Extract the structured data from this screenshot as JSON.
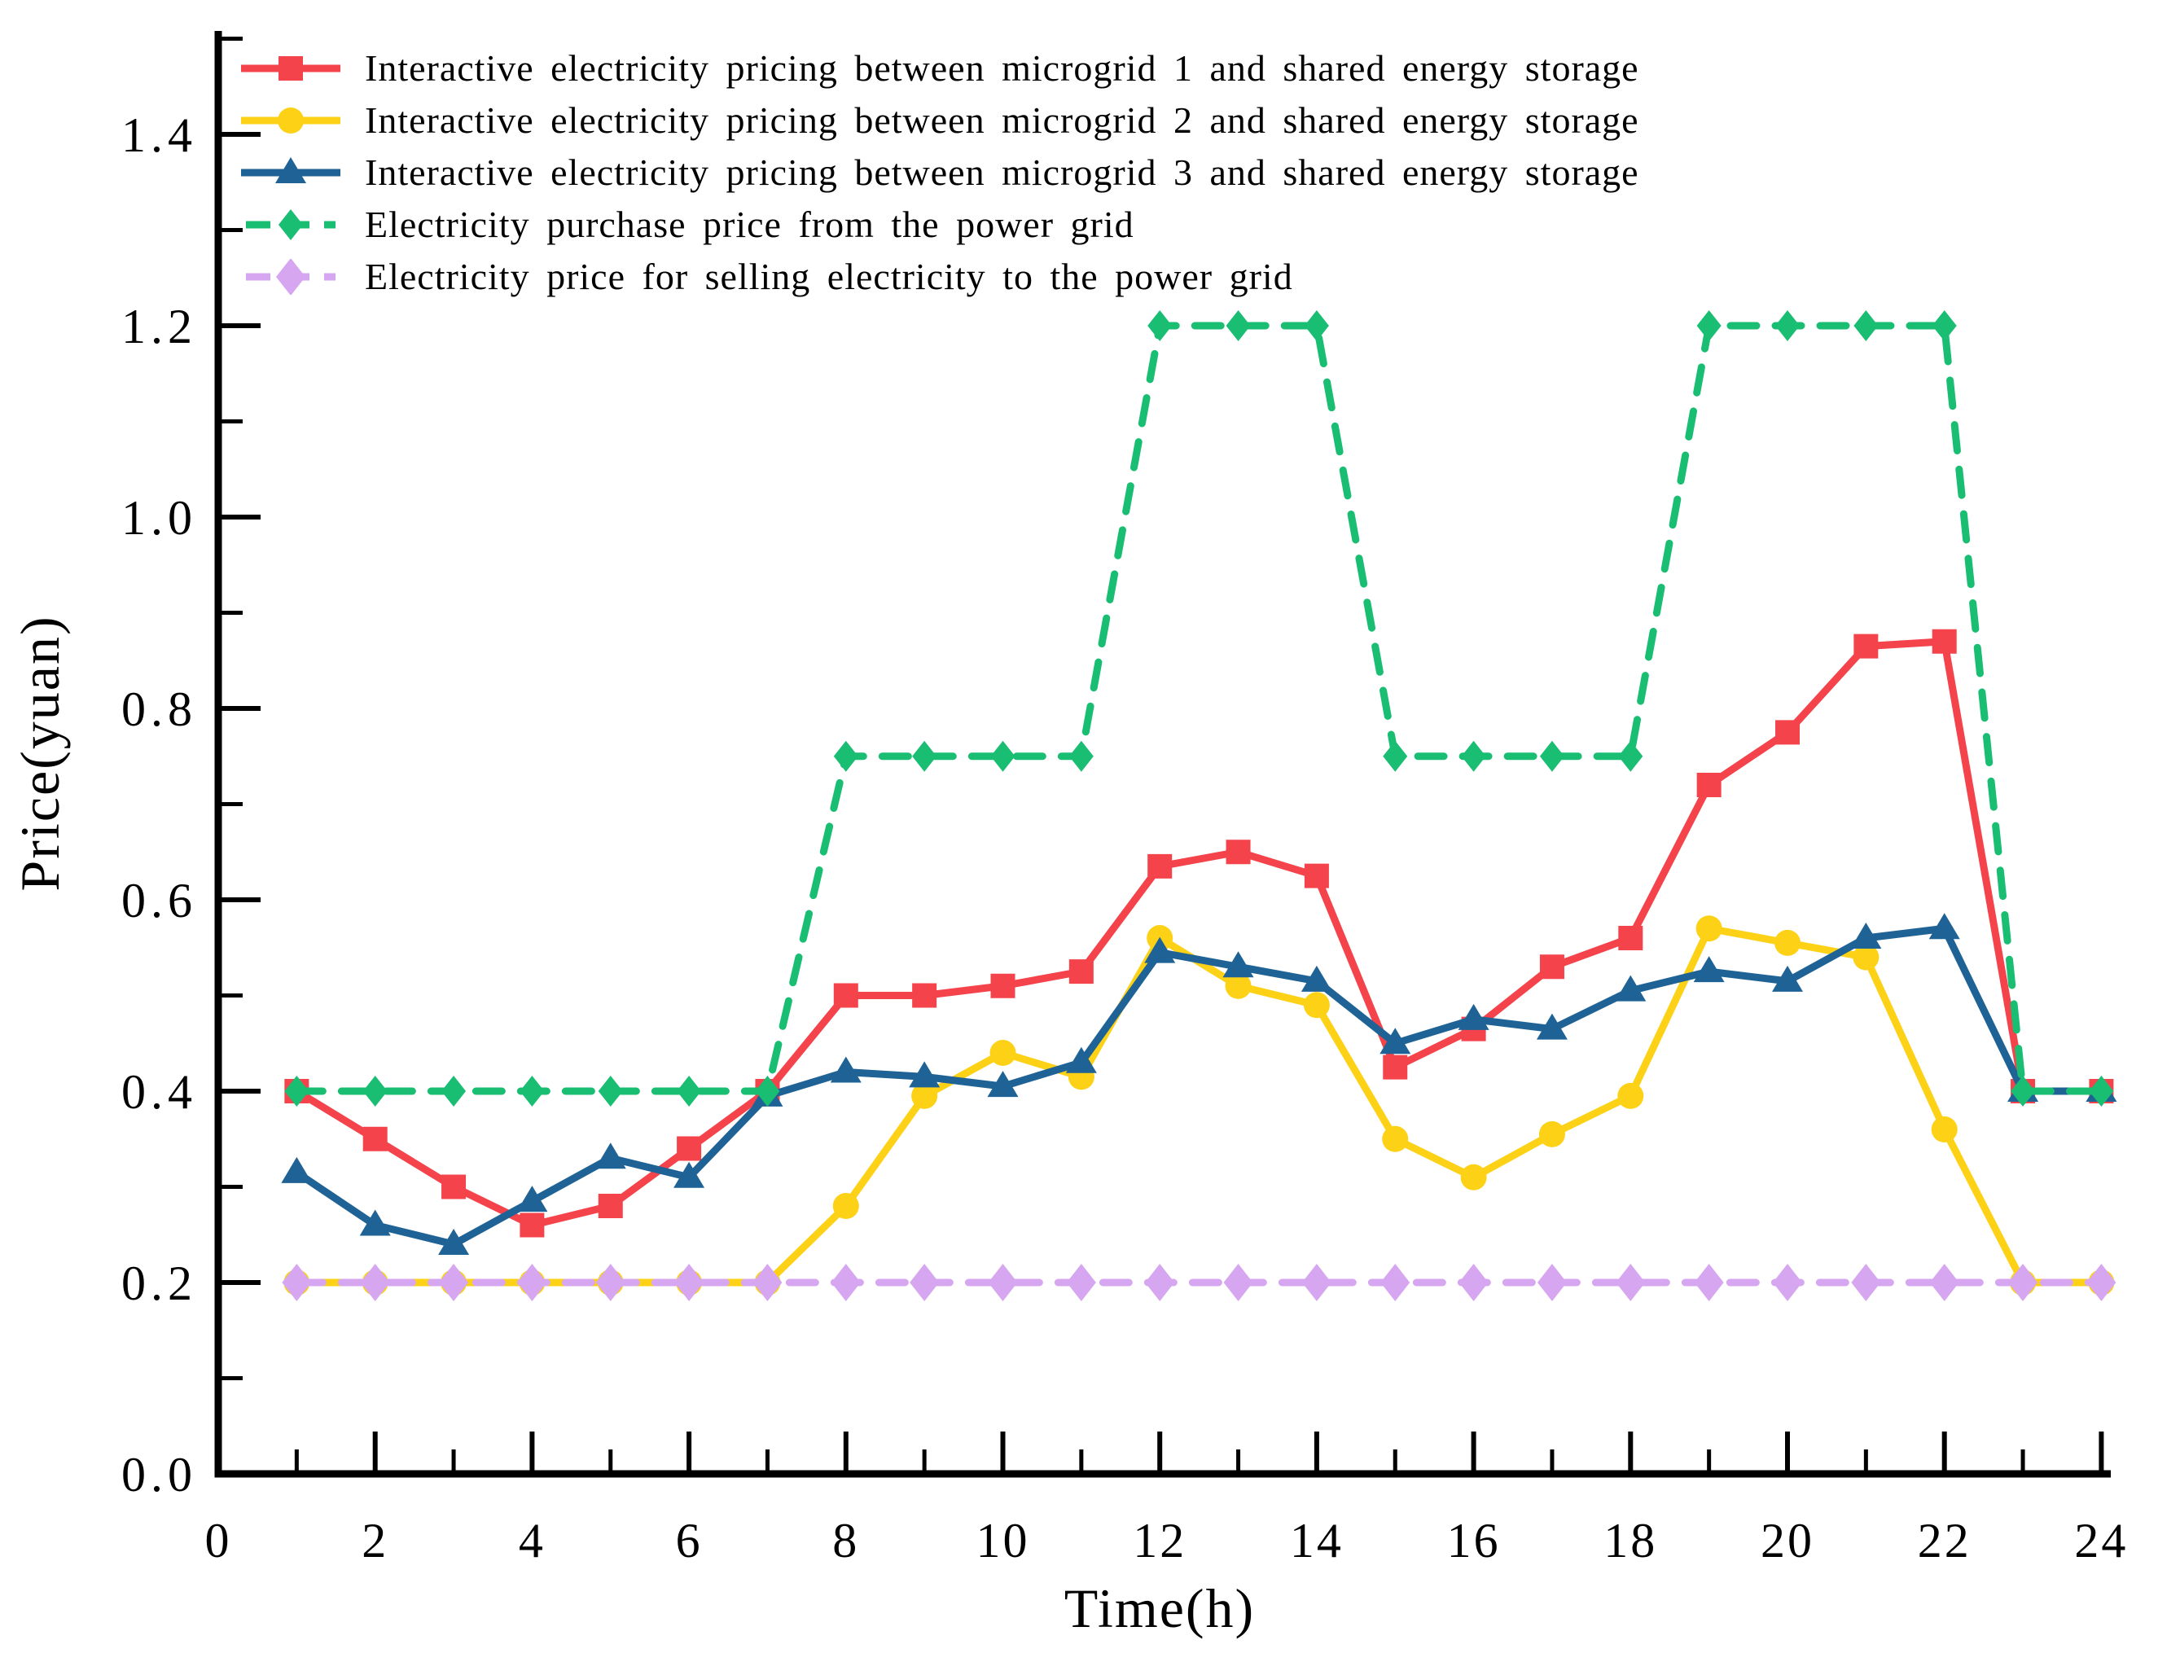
{
  "chart_data": {
    "type": "line",
    "title": "",
    "xlabel": "Time(h)",
    "ylabel": "Price(yuan)",
    "x": [
      1,
      2,
      3,
      4,
      5,
      6,
      7,
      8,
      9,
      10,
      11,
      12,
      13,
      14,
      15,
      16,
      17,
      18,
      19,
      20,
      21,
      22,
      23,
      24
    ],
    "x_tick_labels": [
      "0",
      "2",
      "4",
      "6",
      "8",
      "10",
      "12",
      "14",
      "16",
      "18",
      "20",
      "22",
      "24"
    ],
    "y_tick_labels": [
      "0.0",
      "0.2",
      "0.4",
      "0.6",
      "0.8",
      "1.0",
      "1.2",
      "1.4"
    ],
    "xlim": [
      0,
      24
    ],
    "ylim": [
      0,
      1.5
    ],
    "grid": "off",
    "legend_position": "top-left",
    "axis_color": "#000000",
    "series": [
      {
        "name": "Interactive electricity pricing between microgrid 1 and shared energy storage",
        "color": "#F4434B",
        "marker": "square",
        "line": "solid",
        "values": [
          0.4,
          0.35,
          0.3,
          0.26,
          0.28,
          0.34,
          0.4,
          0.5,
          0.5,
          0.51,
          0.525,
          0.635,
          0.65,
          0.625,
          0.425,
          0.465,
          0.53,
          0.56,
          0.72,
          0.775,
          0.865,
          0.87,
          0.4,
          0.4
        ]
      },
      {
        "name": "Interactive electricity pricing between microgrid 2 and shared energy storage",
        "color": "#FCD116",
        "marker": "circle",
        "line": "solid",
        "values": [
          0.2,
          0.2,
          0.2,
          0.2,
          0.2,
          0.2,
          0.2,
          0.28,
          0.395,
          0.44,
          0.415,
          0.56,
          0.51,
          0.49,
          0.35,
          0.31,
          0.355,
          0.395,
          0.57,
          0.555,
          0.54,
          0.36,
          0.2,
          0.2
        ]
      },
      {
        "name": "Interactive electricity pricing between microgrid 3 and shared energy storage",
        "color": "#1F6396",
        "marker": "triangle",
        "line": "solid",
        "values": [
          0.315,
          0.26,
          0.24,
          0.285,
          0.33,
          0.31,
          0.395,
          0.42,
          0.415,
          0.405,
          0.43,
          0.545,
          0.53,
          0.515,
          0.45,
          0.475,
          0.465,
          0.505,
          0.525,
          0.515,
          0.56,
          0.57,
          0.4,
          0.4
        ]
      },
      {
        "name": "Electricity purchase price from the power grid",
        "color": "#19BE73",
        "marker": "diamond",
        "line": "dashed",
        "values": [
          0.4,
          0.4,
          0.4,
          0.4,
          0.4,
          0.4,
          0.4,
          0.75,
          0.75,
          0.75,
          0.75,
          1.2,
          1.2,
          1.2,
          0.75,
          0.75,
          0.75,
          0.75,
          1.2,
          1.2,
          1.2,
          1.2,
          0.4,
          0.4
        ]
      },
      {
        "name": "Electricity price for selling electricity to the power grid",
        "color": "#D7A6F0",
        "marker": "diamond-wide",
        "line": "dashed",
        "values": [
          0.2,
          0.2,
          0.2,
          0.2,
          0.2,
          0.2,
          0.2,
          0.2,
          0.2,
          0.2,
          0.2,
          0.2,
          0.2,
          0.2,
          0.2,
          0.2,
          0.2,
          0.2,
          0.2,
          0.2,
          0.2,
          0.2,
          0.2,
          0.2
        ]
      }
    ]
  }
}
